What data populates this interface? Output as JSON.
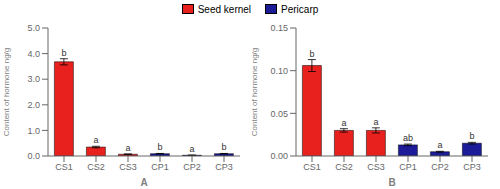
{
  "chart_data": [
    {
      "type": "bar",
      "categories": [
        "CS1",
        "CS2",
        "CS3",
        "CP1",
        "CP2",
        "CP3"
      ],
      "series": [
        {
          "name": "Seed kernel",
          "color": "#e8201e",
          "values": [
            3.68,
            0.35,
            0.07,
            null,
            null,
            null
          ],
          "errors": [
            0.12,
            0.03,
            0.01,
            null,
            null,
            null
          ]
        },
        {
          "name": "Pericarp",
          "color": "#1c1c99",
          "values": [
            null,
            null,
            null,
            0.09,
            0.03,
            0.09
          ],
          "errors": [
            null,
            null,
            null,
            0.01,
            0.01,
            0.01
          ]
        }
      ],
      "annotations": [
        "b",
        "a",
        "a",
        "b",
        "a",
        "b"
      ],
      "ylabel": "Content of hormone ng/g",
      "xlabel": "A",
      "ylim": [
        0,
        5.0
      ],
      "yticks": [
        {
          "value": 0.0,
          "label": "0.0"
        },
        {
          "value": 1.0,
          "label": "1.0"
        },
        {
          "value": 2.0,
          "label": "2.0"
        },
        {
          "value": 3.0,
          "label": "3.0"
        },
        {
          "value": 4.0,
          "label": "4.0"
        },
        {
          "value": 5.0,
          "label": "5.0"
        }
      ]
    },
    {
      "type": "bar",
      "categories": [
        "CS1",
        "CS2",
        "CS3",
        "CP1",
        "CP2",
        "CP3"
      ],
      "series": [
        {
          "name": "Seed kernel",
          "color": "#e8201e",
          "values": [
            0.106,
            0.03,
            0.03,
            null,
            null,
            null
          ],
          "errors": [
            0.007,
            0.002,
            0.003,
            null,
            null,
            null
          ]
        },
        {
          "name": "Pericarp",
          "color": "#1c1c99",
          "values": [
            null,
            null,
            null,
            0.013,
            0.005,
            0.015
          ],
          "errors": [
            null,
            null,
            null,
            0.001,
            0.0005,
            0.001
          ]
        }
      ],
      "annotations": [
        "b",
        "a",
        "a",
        "ab",
        "a",
        "b"
      ],
      "ylabel": "Content of hormone ng/g",
      "xlabel": "B",
      "ylim": [
        0,
        0.15
      ],
      "yticks": [
        {
          "value": 0.0,
          "label": "0.00"
        },
        0.05,
        {
          "value": 0.1,
          "label": "0.10"
        },
        0.15
      ]
    }
  ]
}
